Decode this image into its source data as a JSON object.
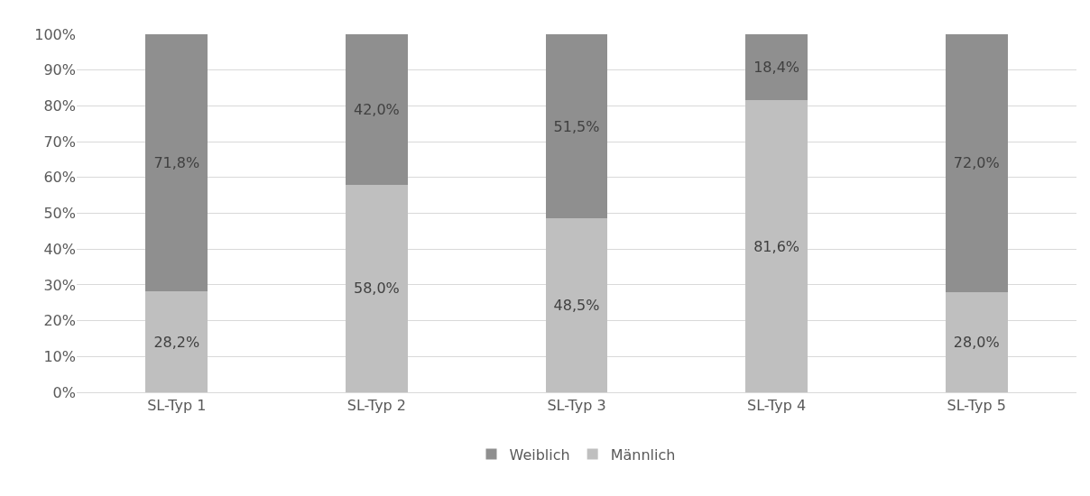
{
  "chart_data": {
    "type": "bar",
    "stacked": true,
    "categories": [
      "SL-Typ 1",
      "SL-Typ 2",
      "SL-Typ 3",
      "SL-Typ 4",
      "SL-Typ 5"
    ],
    "series": [
      {
        "name": "Männlich",
        "color": "#bfbfbf",
        "values": [
          28.2,
          58.0,
          48.5,
          81.6,
          28.0
        ],
        "value_labels": [
          "28,2%",
          "58,0%",
          "48,5%",
          "81,6%",
          "28,0%"
        ]
      },
      {
        "name": "Weiblich",
        "color": "#8f8f8f",
        "values": [
          71.8,
          42.0,
          51.5,
          18.4,
          72.0
        ],
        "value_labels": [
          "71,8%",
          "42,0%",
          "51,5%",
          "18,4%",
          "72,0%"
        ]
      }
    ],
    "ylim": [
      0,
      100
    ],
    "yticks": [
      {
        "value": 0,
        "label": "0%"
      },
      {
        "value": 10,
        "label": "10%"
      },
      {
        "value": 20,
        "label": "20%"
      },
      {
        "value": 30,
        "label": "30%"
      },
      {
        "value": 40,
        "label": "40%"
      },
      {
        "value": 50,
        "label": "50%"
      },
      {
        "value": 60,
        "label": "60%"
      },
      {
        "value": 70,
        "label": "70%"
      },
      {
        "value": 80,
        "label": "80%"
      },
      {
        "value": 90,
        "label": "90%"
      },
      {
        "value": 100,
        "label": "100%"
      }
    ],
    "grid": "y",
    "legend": "bottom"
  }
}
